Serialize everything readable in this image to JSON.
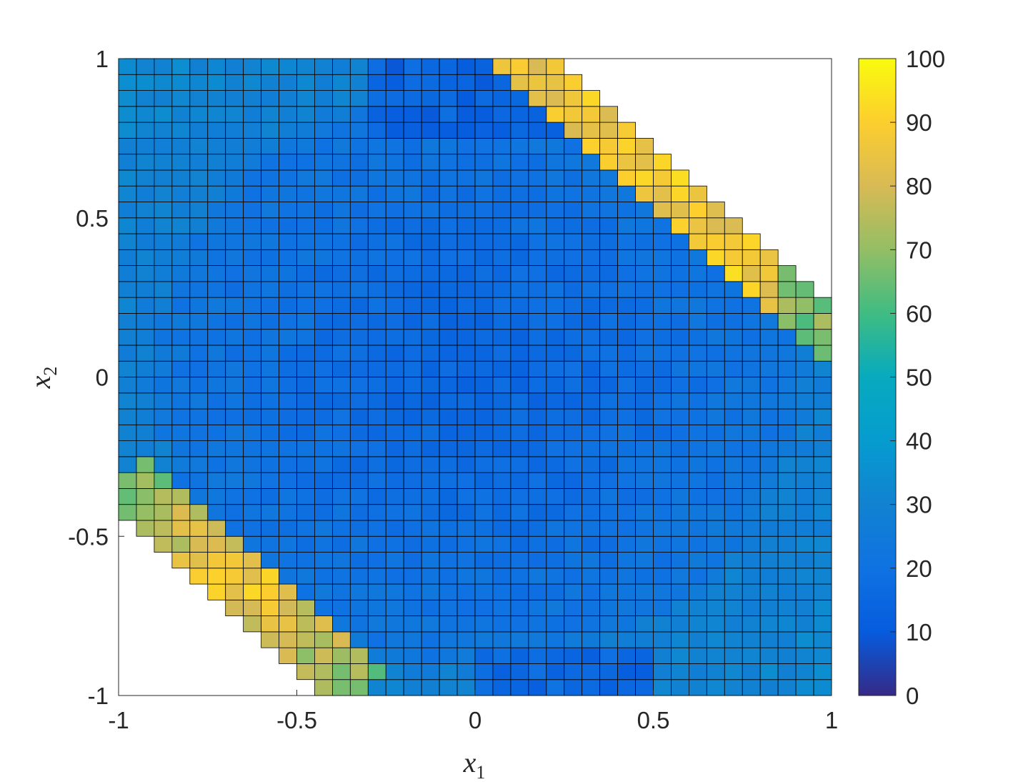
{
  "chart_data": {
    "type": "heatmap",
    "title": "",
    "xlabel": "x",
    "xlabel_sub": "1",
    "ylabel": "x",
    "ylabel_sub": "2",
    "xlim": [
      -1,
      1
    ],
    "ylim": [
      -1,
      1
    ],
    "x_ticks": [
      "-1",
      "-0.5",
      "0",
      "0.5",
      "1"
    ],
    "y_ticks": [
      "-1",
      "-0.5",
      "0",
      "0.5",
      "1"
    ],
    "x_tick_values": [
      -1,
      -0.5,
      0,
      0.5,
      1
    ],
    "y_tick_values": [
      -1,
      -0.5,
      0,
      0.5,
      1
    ],
    "grid_size": [
      40,
      40
    ],
    "colormap": "parula",
    "colorbar": {
      "range": [
        0,
        100
      ],
      "ticks": [
        "0",
        "10",
        "20",
        "30",
        "40",
        "50",
        "60",
        "70",
        "80",
        "90",
        "100"
      ],
      "tick_values": [
        0,
        10,
        20,
        30,
        40,
        50,
        60,
        70,
        80,
        90,
        100
      ]
    },
    "value_regions": [
      {
        "region": "central disk",
        "approx_value": 20
      },
      {
        "region": "outer ring",
        "approx_value": 28
      },
      {
        "region": "upper-right rim band",
        "approx_value": 90
      },
      {
        "region": "lower-left rim band",
        "approx_value": 90
      }
    ],
    "empty_regions": [
      "upper-right corner",
      "lower-left corner"
    ],
    "cell_edge_color": "#000000"
  }
}
